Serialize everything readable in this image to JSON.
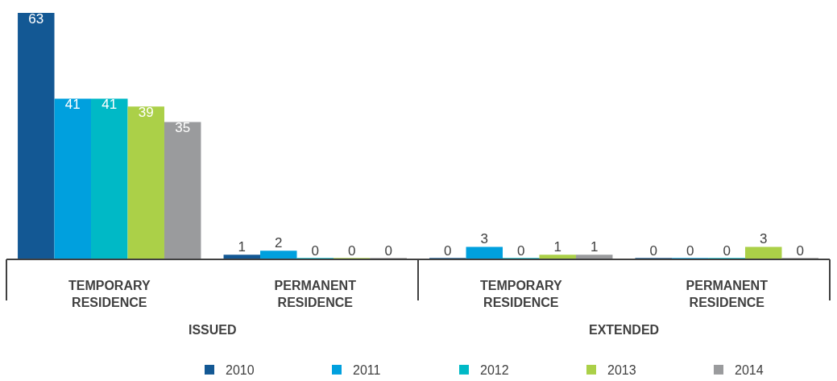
{
  "chart_data": {
    "type": "bar",
    "categories": [
      "TEMPORARY RESIDENCE",
      "PERMANENT RESIDENCE",
      "TEMPORARY RESIDENCE",
      "PERMANENT RESIDENCE"
    ],
    "annotations": [
      "ISSUED",
      "EXTENDED"
    ],
    "series": [
      {
        "name": "2010",
        "color": "#135894",
        "values": [
          63,
          1,
          0,
          0
        ]
      },
      {
        "name": "2011",
        "color": "#00a0de",
        "values": [
          41,
          2,
          3,
          0
        ]
      },
      {
        "name": "2012",
        "color": "#00b9c6",
        "values": [
          41,
          0,
          0,
          0
        ]
      },
      {
        "name": "2013",
        "color": "#abd048",
        "values": [
          39,
          0,
          1,
          3
        ]
      },
      {
        "name": "2014",
        "color": "#9a9b9d",
        "values": [
          35,
          0,
          1,
          0
        ]
      }
    ],
    "data_labels": true,
    "legend": "bottom right"
  }
}
